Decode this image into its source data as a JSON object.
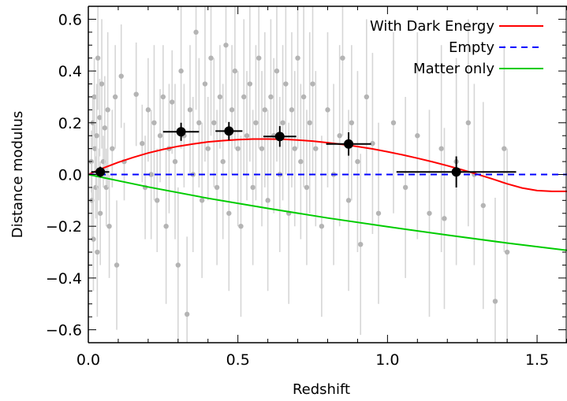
{
  "chart_data": {
    "type": "scatter",
    "xlabel": "Redshift",
    "ylabel": "Distance modulus",
    "xlim": [
      0.0,
      1.6
    ],
    "ylim": [
      -0.65,
      0.65
    ],
    "x_ticks": [
      0.0,
      0.5,
      1.0,
      1.5
    ],
    "x_tick_labels": [
      "0.0",
      "0.5",
      "1.0",
      "1.5"
    ],
    "y_ticks": [
      -0.6,
      -0.4,
      -0.2,
      0.0,
      0.2,
      0.4,
      0.6
    ],
    "y_tick_labels": [
      "−0.6",
      "−0.4",
      "−0.2",
      "0.0",
      "0.2",
      "0.4",
      "0.6"
    ],
    "grid": false,
    "legend_position": "top-right",
    "legend": [
      {
        "label": "With Dark Energy",
        "color": "#ff0000",
        "style": "solid"
      },
      {
        "label": "Empty",
        "color": "#0000ff",
        "style": "dashed"
      },
      {
        "label": "Matter only",
        "color": "#00cc00",
        "style": "solid"
      }
    ],
    "models": [
      {
        "name": "With Dark Energy",
        "color": "#ff0000",
        "style": "solid",
        "points": [
          [
            0.0,
            0.0
          ],
          [
            0.05,
            0.025
          ],
          [
            0.1,
            0.047
          ],
          [
            0.15,
            0.066
          ],
          [
            0.2,
            0.083
          ],
          [
            0.25,
            0.097
          ],
          [
            0.3,
            0.109
          ],
          [
            0.35,
            0.118
          ],
          [
            0.4,
            0.126
          ],
          [
            0.45,
            0.131
          ],
          [
            0.5,
            0.135
          ],
          [
            0.55,
            0.137
          ],
          [
            0.6,
            0.137
          ],
          [
            0.65,
            0.136
          ],
          [
            0.7,
            0.133
          ],
          [
            0.75,
            0.129
          ],
          [
            0.8,
            0.123
          ],
          [
            0.85,
            0.116
          ],
          [
            0.9,
            0.108
          ],
          [
            0.95,
            0.099
          ],
          [
            1.0,
            0.088
          ],
          [
            1.05,
            0.076
          ],
          [
            1.1,
            0.063
          ],
          [
            1.15,
            0.049
          ],
          [
            1.2,
            0.034
          ],
          [
            1.25,
            0.018
          ],
          [
            1.3,
            0.001
          ],
          [
            1.35,
            -0.017
          ],
          [
            1.4,
            -0.036
          ],
          [
            1.45,
            -0.052
          ],
          [
            1.5,
            -0.062
          ],
          [
            1.55,
            -0.065
          ],
          [
            1.6,
            -0.065
          ]
        ]
      },
      {
        "name": "Empty",
        "color": "#0000ff",
        "style": "dashed",
        "points": [
          [
            0.0,
            0.0
          ],
          [
            1.6,
            0.0
          ]
        ]
      },
      {
        "name": "Matter only",
        "color": "#00cc00",
        "style": "solid",
        "points": [
          [
            0.0,
            0.0
          ],
          [
            0.2,
            -0.048
          ],
          [
            0.4,
            -0.092
          ],
          [
            0.6,
            -0.131
          ],
          [
            0.8,
            -0.168
          ],
          [
            1.0,
            -0.202
          ],
          [
            1.2,
            -0.234
          ],
          [
            1.4,
            -0.265
          ],
          [
            1.6,
            -0.293
          ]
        ]
      }
    ],
    "binned_points": {
      "color": "#000000",
      "points": [
        {
          "x": 0.04,
          "y": 0.01,
          "xerr": 0.03,
          "yerr": 0.02
        },
        {
          "x": 0.31,
          "y": 0.165,
          "xerr": 0.06,
          "yerr": 0.035
        },
        {
          "x": 0.47,
          "y": 0.168,
          "xerr": 0.045,
          "yerr": 0.035
        },
        {
          "x": 0.64,
          "y": 0.147,
          "xerr": 0.055,
          "yerr": 0.04
        },
        {
          "x": 0.87,
          "y": 0.118,
          "xerr": 0.075,
          "yerr": 0.045
        },
        {
          "x": 1.23,
          "y": 0.01,
          "xerr": 0.2,
          "yerr": 0.06
        }
      ]
    },
    "individual_points": {
      "color": "#b4b4b4",
      "points": [
        [
          0.01,
          0.05,
          0.12
        ],
        [
          0.012,
          -0.1,
          0.15
        ],
        [
          0.015,
          0.2,
          0.1
        ],
        [
          0.017,
          -0.25,
          0.2
        ],
        [
          0.02,
          0.3,
          0.15
        ],
        [
          0.022,
          0.1,
          0.1
        ],
        [
          0.025,
          -0.05,
          0.12
        ],
        [
          0.028,
          0.15,
          0.2
        ],
        [
          0.03,
          -0.3,
          0.25
        ],
        [
          0.032,
          0.45,
          0.2
        ],
        [
          0.035,
          0.0,
          0.1
        ],
        [
          0.038,
          0.22,
          0.15
        ],
        [
          0.04,
          -0.15,
          0.2
        ],
        [
          0.045,
          0.35,
          0.25
        ],
        [
          0.05,
          0.05,
          0.1
        ],
        [
          0.055,
          0.18,
          0.2
        ],
        [
          0.06,
          -0.05,
          0.15
        ],
        [
          0.065,
          0.25,
          0.3
        ],
        [
          0.07,
          -0.2,
          0.2
        ],
        [
          0.08,
          0.1,
          0.15
        ],
        [
          0.09,
          0.3,
          0.2
        ],
        [
          0.095,
          -0.35,
          0.25
        ],
        [
          0.11,
          0.38,
          0.2
        ],
        [
          0.12,
          0.05,
          0.15
        ],
        [
          0.16,
          0.31,
          0.2
        ],
        [
          0.18,
          0.12,
          0.15
        ],
        [
          0.19,
          -0.05,
          0.2
        ],
        [
          0.2,
          0.25,
          0.2
        ],
        [
          0.21,
          0.0,
          0.25
        ],
        [
          0.22,
          0.2,
          0.3
        ],
        [
          0.23,
          -0.1,
          0.2
        ],
        [
          0.24,
          0.15,
          0.18
        ],
        [
          0.25,
          0.3,
          0.2
        ],
        [
          0.26,
          -0.2,
          0.3
        ],
        [
          0.27,
          0.1,
          0.25
        ],
        [
          0.28,
          0.28,
          0.2
        ],
        [
          0.29,
          0.05,
          0.3
        ],
        [
          0.3,
          -0.35,
          0.3
        ],
        [
          0.31,
          0.4,
          0.3
        ],
        [
          0.32,
          0.15,
          0.2
        ],
        [
          0.33,
          -0.54,
          0.3
        ],
        [
          0.34,
          0.25,
          0.25
        ],
        [
          0.35,
          0.0,
          0.3
        ],
        [
          0.36,
          0.55,
          0.3
        ],
        [
          0.37,
          0.2,
          0.25
        ],
        [
          0.38,
          -0.1,
          0.3
        ],
        [
          0.39,
          0.35,
          0.3
        ],
        [
          0.4,
          0.1,
          0.2
        ],
        [
          0.41,
          0.45,
          0.3
        ],
        [
          0.42,
          0.2,
          0.25
        ],
        [
          0.43,
          -0.05,
          0.3
        ],
        [
          0.44,
          0.3,
          0.2
        ],
        [
          0.45,
          0.05,
          0.3
        ],
        [
          0.46,
          0.5,
          0.3
        ],
        [
          0.47,
          -0.15,
          0.3
        ],
        [
          0.48,
          0.25,
          0.25
        ],
        [
          0.49,
          0.4,
          0.3
        ],
        [
          0.5,
          0.1,
          0.3
        ],
        [
          0.51,
          -0.2,
          0.35
        ],
        [
          0.52,
          0.3,
          0.3
        ],
        [
          0.53,
          0.15,
          0.25
        ],
        [
          0.54,
          0.35,
          0.3
        ],
        [
          0.55,
          -0.05,
          0.3
        ],
        [
          0.56,
          0.2,
          0.3
        ],
        [
          0.57,
          0.45,
          0.35
        ],
        [
          0.58,
          0.1,
          0.3
        ],
        [
          0.59,
          0.25,
          0.3
        ],
        [
          0.6,
          -0.1,
          0.35
        ],
        [
          0.61,
          0.3,
          0.3
        ],
        [
          0.62,
          0.15,
          0.3
        ],
        [
          0.63,
          0.4,
          0.35
        ],
        [
          0.64,
          0.0,
          0.3
        ],
        [
          0.65,
          0.2,
          0.3
        ],
        [
          0.66,
          0.35,
          0.35
        ],
        [
          0.67,
          -0.15,
          0.35
        ],
        [
          0.68,
          0.25,
          0.3
        ],
        [
          0.69,
          0.1,
          0.3
        ],
        [
          0.7,
          0.45,
          0.35
        ],
        [
          0.71,
          0.05,
          0.3
        ],
        [
          0.72,
          0.3,
          0.35
        ],
        [
          0.73,
          -0.05,
          0.3
        ],
        [
          0.74,
          0.2,
          0.35
        ],
        [
          0.75,
          0.35,
          0.35
        ],
        [
          0.76,
          0.1,
          0.3
        ],
        [
          0.78,
          -0.2,
          0.35
        ],
        [
          0.8,
          0.25,
          0.3
        ],
        [
          0.82,
          0.0,
          0.35
        ],
        [
          0.84,
          0.15,
          0.35
        ],
        [
          0.85,
          0.45,
          0.3
        ],
        [
          0.87,
          -0.1,
          0.35
        ],
        [
          0.88,
          0.2,
          0.3
        ],
        [
          0.9,
          0.05,
          0.35
        ],
        [
          0.91,
          -0.27,
          0.35
        ],
        [
          0.93,
          0.3,
          0.3
        ],
        [
          0.95,
          0.12,
          0.35
        ],
        [
          0.97,
          -0.15,
          0.35
        ],
        [
          1.02,
          0.2,
          0.35
        ],
        [
          1.06,
          -0.05,
          0.35
        ],
        [
          1.1,
          0.15,
          0.4
        ],
        [
          1.14,
          -0.15,
          0.4
        ],
        [
          1.18,
          0.1,
          0.4
        ],
        [
          1.19,
          -0.17,
          0.35
        ],
        [
          1.23,
          0.05,
          0.4
        ],
        [
          1.27,
          0.2,
          0.4
        ],
        [
          1.29,
          0.0,
          0.35
        ],
        [
          1.32,
          -0.12,
          0.4
        ],
        [
          1.36,
          -0.49,
          0.4
        ],
        [
          1.39,
          0.1,
          0.4
        ],
        [
          1.4,
          -0.3,
          0.4
        ]
      ]
    }
  }
}
